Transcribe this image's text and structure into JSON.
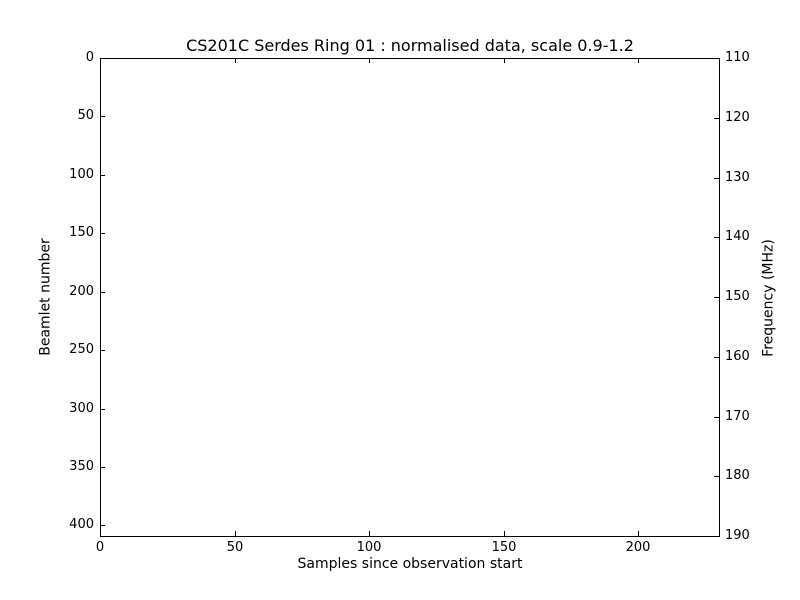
{
  "chart_data": {
    "type": "heatmap",
    "title": "CS201C Serdes Ring 01 : normalised data, scale 0.9-1.2",
    "xlabel": "Samples since observation start",
    "ylabel_left": "Beamlet number",
    "ylabel_right": "Frequency (MHz)",
    "xlim": [
      0,
      230
    ],
    "ylim_left": [
      0,
      409
    ],
    "ylim_right": [
      110,
      190
    ],
    "y_axis_inverted": true,
    "x_ticks": [
      0,
      50,
      100,
      150,
      200
    ],
    "y_ticks_left": [
      0,
      50,
      100,
      150,
      200,
      250,
      300,
      350,
      400
    ],
    "y_ticks_right": [
      110,
      120,
      130,
      140,
      150,
      160,
      170,
      180,
      190
    ],
    "tick_direction": "in",
    "grid": false,
    "legend": "none",
    "values": [],
    "plot_area_empty": true,
    "colors": {
      "frame": "#000000",
      "text": "#000000",
      "background": "#ffffff",
      "plot_background": "#ffffff"
    }
  }
}
